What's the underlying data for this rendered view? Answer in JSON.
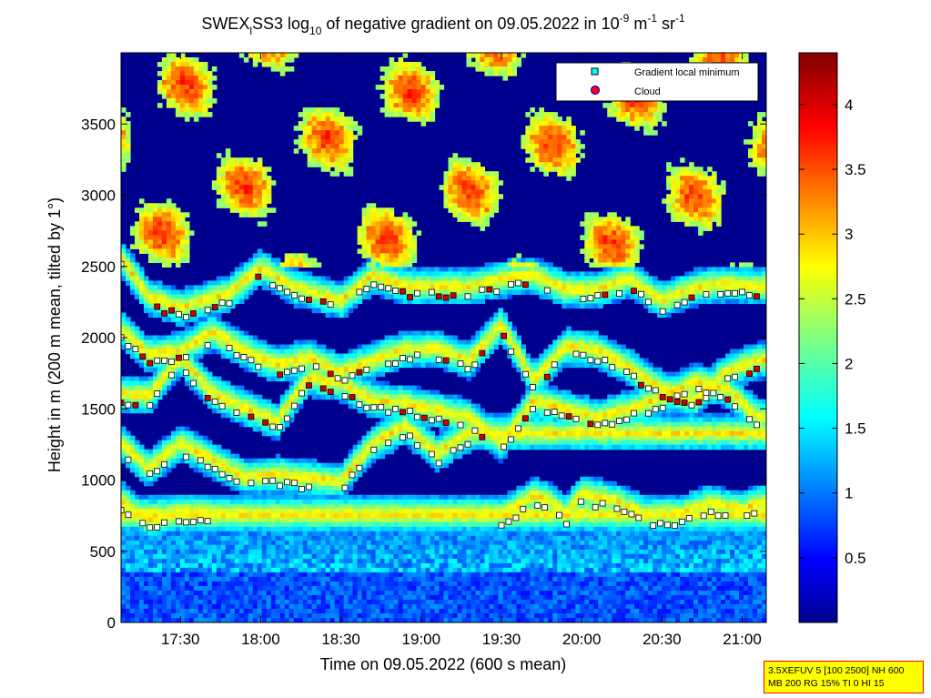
{
  "chart_data": {
    "type": "heatmap",
    "title": {
      "prefix": "SWEX",
      "prefix_sub": "l",
      "main": "SS3 log",
      "log_sub": "10",
      "rest": " of negative gradient on 09.05.2022 in 10",
      "exp1": "-9",
      "unit1": " m",
      "exp2": "-1",
      "unit2": " sr",
      "exp3": "-1"
    },
    "xlabel": "Time on 09.05.2022 (600 s mean)",
    "ylabel": "Height in m (200 m mean, tilted by 1°)",
    "x_ticks": [
      "17:30",
      "18:00",
      "18:30",
      "19:00",
      "19:30",
      "20:00",
      "20:30",
      "21:00"
    ],
    "x_tick_hours": [
      17.5,
      18.0,
      18.5,
      19.0,
      19.5,
      20.0,
      20.5,
      21.0
    ],
    "xlim_hours": [
      17.13,
      21.15
    ],
    "y_ticks": [
      "0",
      "500",
      "1000",
      "1500",
      "2000",
      "2500",
      "3000",
      "3500"
    ],
    "y_tick_values": [
      0,
      500,
      1000,
      1500,
      2000,
      2500,
      3000,
      3500
    ],
    "ylim": [
      0,
      4000
    ],
    "colorbar": {
      "colormap": "jet",
      "range": [
        0,
        4.4
      ],
      "tick_labels": [
        "0.5",
        "1",
        "1.5",
        "2",
        "2.5",
        "3",
        "3.5",
        "4"
      ],
      "tick_values": [
        0.5,
        1.0,
        1.5,
        2.0,
        2.5,
        3.0,
        3.5,
        4.0
      ]
    },
    "legend": {
      "placement": "top-right",
      "entries": [
        {
          "label": "Gradient local minimum",
          "marker": "square",
          "color": "#00ffff"
        },
        {
          "label": "Cloud",
          "marker": "circle",
          "color": "#ff0000",
          "edge": "#0000ff"
        }
      ]
    },
    "layers": [
      {
        "name": "layer-800",
        "points": [
          [
            17.13,
            800
          ],
          [
            17.3,
            650
          ],
          [
            17.5,
            720
          ],
          [
            17.7,
            700
          ]
        ]
      },
      {
        "name": "layer-1000",
        "points": [
          [
            17.13,
            1200
          ],
          [
            17.3,
            1020
          ],
          [
            17.5,
            1200
          ],
          [
            17.7,
            1080
          ],
          [
            17.9,
            960
          ],
          [
            18.1,
            980
          ],
          [
            18.3,
            950
          ],
          [
            18.5,
            930
          ],
          [
            18.7,
            1200
          ],
          [
            18.9,
            1320
          ],
          [
            19.1,
            1130
          ],
          [
            19.3,
            1270
          ]
        ]
      },
      {
        "name": "layer-1500",
        "points": [
          [
            17.13,
            1550
          ],
          [
            17.3,
            1530
          ],
          [
            17.5,
            1800
          ],
          [
            17.7,
            1550
          ],
          [
            17.9,
            1450
          ],
          [
            18.1,
            1350
          ],
          [
            18.3,
            1660
          ],
          [
            18.5,
            1620
          ],
          [
            18.7,
            1500
          ],
          [
            18.9,
            1480
          ],
          [
            19.1,
            1430
          ],
          [
            19.3,
            1380
          ],
          [
            19.5,
            1200
          ],
          [
            19.7,
            1500
          ],
          [
            19.9,
            1440
          ],
          [
            20.1,
            1380
          ],
          [
            20.3,
            1440
          ],
          [
            20.5,
            1520
          ],
          [
            20.7,
            1630
          ],
          [
            20.9,
            1580
          ],
          [
            21.1,
            1380
          ]
        ]
      },
      {
        "name": "layer-1850",
        "points": [
          [
            17.13,
            2000
          ],
          [
            17.3,
            1820
          ],
          [
            17.5,
            1850
          ],
          [
            17.7,
            1980
          ],
          [
            17.9,
            1850
          ],
          [
            18.1,
            1750
          ],
          [
            18.3,
            1800
          ],
          [
            18.5,
            1700
          ],
          [
            18.7,
            1780
          ],
          [
            18.9,
            1860
          ],
          [
            19.1,
            1860
          ],
          [
            19.3,
            1780
          ],
          [
            19.5,
            2030
          ],
          [
            19.7,
            1640
          ],
          [
            19.9,
            1880
          ],
          [
            20.1,
            1850
          ],
          [
            20.3,
            1730
          ],
          [
            20.5,
            1580
          ],
          [
            20.7,
            1500
          ],
          [
            20.9,
            1700
          ],
          [
            21.1,
            1780
          ]
        ]
      },
      {
        "name": "layer-2300",
        "points": [
          [
            17.13,
            2500
          ],
          [
            17.3,
            2230
          ],
          [
            17.5,
            2150
          ],
          [
            17.8,
            2250
          ],
          [
            18.0,
            2430
          ],
          [
            18.2,
            2300
          ],
          [
            18.5,
            2200
          ],
          [
            18.7,
            2380
          ],
          [
            18.9,
            2300
          ],
          [
            19.1,
            2300
          ],
          [
            19.3,
            2300
          ],
          [
            19.5,
            2350
          ],
          [
            19.7,
            2380
          ],
          [
            19.9,
            2280
          ],
          [
            20.1,
            2280
          ],
          [
            20.3,
            2350
          ],
          [
            20.5,
            2200
          ],
          [
            20.7,
            2290
          ],
          [
            20.9,
            2320
          ],
          [
            21.1,
            2300
          ]
        ]
      },
      {
        "name": "layer-700",
        "points": [
          [
            19.5,
            700
          ],
          [
            19.6,
            760
          ],
          [
            19.7,
            830
          ],
          [
            19.8,
            800
          ],
          [
            19.9,
            700
          ],
          [
            20.0,
            850
          ],
          [
            20.2,
            800
          ],
          [
            20.4,
            700
          ],
          [
            20.6,
            700
          ],
          [
            20.8,
            780
          ],
          [
            21.0,
            730
          ],
          [
            21.1,
            780
          ]
        ]
      }
    ],
    "label_extra": "3.5XEFUV 5 [100 2500] NH 600",
    "label_extra2": "MB 200 RG 15% TI 0 HI 15"
  }
}
